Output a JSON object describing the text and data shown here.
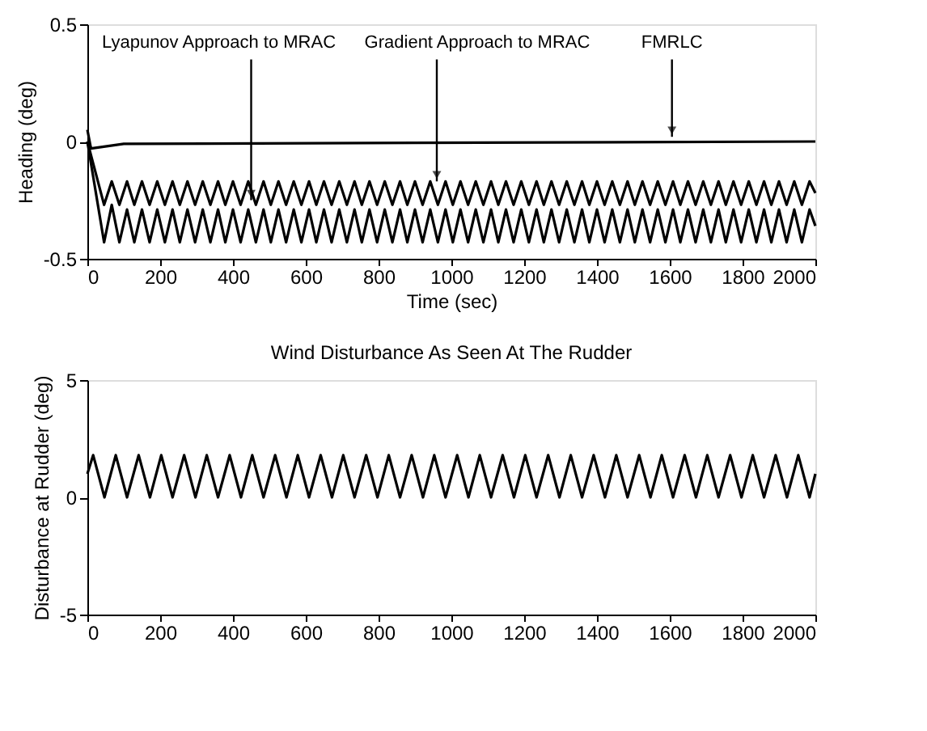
{
  "chart_data": [
    {
      "type": "line",
      "xlabel": "Time (sec)",
      "ylabel": "Heading (deg)",
      "xlim": [
        0,
        2000
      ],
      "xticks": [
        0,
        200,
        400,
        600,
        800,
        1000,
        1200,
        1400,
        1600,
        1800,
        2000
      ],
      "ylim": [
        -0.5,
        0.5
      ],
      "yticks": [
        -0.5,
        0,
        0.5
      ],
      "grid": false,
      "line_style": "solid",
      "marker": "none",
      "x": [
        0,
        46,
        67,
        88,
        109,
        129,
        150,
        171,
        192,
        213,
        234,
        254,
        275,
        296,
        317,
        338,
        359,
        379,
        400,
        421,
        442,
        463,
        484,
        504,
        525,
        546,
        567,
        588,
        609,
        629,
        650,
        671,
        692,
        713,
        734,
        754,
        775,
        796,
        817,
        838,
        859,
        879,
        900,
        921,
        942,
        963,
        984,
        1004,
        1025,
        1046,
        1067,
        1088,
        1109,
        1129,
        1150,
        1171,
        1192,
        1213,
        1234,
        1254,
        1275,
        1296,
        1317,
        1338,
        1359,
        1379,
        1400,
        1421,
        1442,
        1463,
        1484,
        1504,
        1525,
        1546,
        1567,
        1588,
        1609,
        1629,
        1650,
        1671,
        1692,
        1713,
        1734,
        1754,
        1775,
        1796,
        1817,
        1838,
        1859,
        1879,
        1900,
        1921,
        1942,
        1963,
        1984,
        2000
      ],
      "series": [
        {
          "color": "#000000",
          "x": [
            0,
            10,
            100,
            2000
          ],
          "values": [
            0.05,
            -0.03,
            -0.01,
            0.0
          ]
        },
        {
          "color": "#000000",
          "values": [
            0,
            -0.27,
            -0.17,
            -0.27,
            -0.17,
            -0.27,
            -0.17,
            -0.27,
            -0.17,
            -0.27,
            -0.17,
            -0.27,
            -0.17,
            -0.27,
            -0.17,
            -0.27,
            -0.17,
            -0.27,
            -0.17,
            -0.27,
            -0.17,
            -0.27,
            -0.17,
            -0.27,
            -0.17,
            -0.27,
            -0.17,
            -0.27,
            -0.17,
            -0.27,
            -0.17,
            -0.27,
            -0.17,
            -0.27,
            -0.17,
            -0.27,
            -0.17,
            -0.27,
            -0.17,
            -0.27,
            -0.17,
            -0.27,
            -0.17,
            -0.27,
            -0.17,
            -0.27,
            -0.17,
            -0.27,
            -0.17,
            -0.27,
            -0.17,
            -0.27,
            -0.17,
            -0.27,
            -0.17,
            -0.27,
            -0.17,
            -0.27,
            -0.17,
            -0.27,
            -0.17,
            -0.27,
            -0.17,
            -0.27,
            -0.17,
            -0.27,
            -0.17,
            -0.27,
            -0.17,
            -0.27,
            -0.17,
            -0.27,
            -0.17,
            -0.27,
            -0.17,
            -0.27,
            -0.17,
            -0.27,
            -0.17,
            -0.27,
            -0.17,
            -0.27,
            -0.17,
            -0.27,
            -0.17,
            -0.27,
            -0.17,
            -0.27,
            -0.17,
            -0.27,
            -0.17,
            -0.27,
            -0.17,
            -0.27,
            -0.17,
            -0.22
          ]
        },
        {
          "color": "#000000",
          "values": [
            0,
            -0.43,
            -0.27,
            -0.43,
            -0.29,
            -0.43,
            -0.29,
            -0.43,
            -0.29,
            -0.43,
            -0.29,
            -0.43,
            -0.29,
            -0.43,
            -0.29,
            -0.43,
            -0.29,
            -0.43,
            -0.29,
            -0.43,
            -0.29,
            -0.43,
            -0.29,
            -0.43,
            -0.29,
            -0.43,
            -0.29,
            -0.43,
            -0.29,
            -0.43,
            -0.29,
            -0.43,
            -0.29,
            -0.43,
            -0.29,
            -0.43,
            -0.29,
            -0.43,
            -0.29,
            -0.43,
            -0.29,
            -0.43,
            -0.29,
            -0.43,
            -0.29,
            -0.43,
            -0.29,
            -0.43,
            -0.29,
            -0.43,
            -0.29,
            -0.43,
            -0.29,
            -0.43,
            -0.29,
            -0.43,
            -0.29,
            -0.43,
            -0.29,
            -0.43,
            -0.29,
            -0.43,
            -0.29,
            -0.43,
            -0.29,
            -0.43,
            -0.29,
            -0.43,
            -0.29,
            -0.43,
            -0.29,
            -0.43,
            -0.29,
            -0.43,
            -0.29,
            -0.43,
            -0.29,
            -0.43,
            -0.29,
            -0.43,
            -0.29,
            -0.43,
            -0.29,
            -0.43,
            -0.29,
            -0.43,
            -0.29,
            -0.43,
            -0.29,
            -0.43,
            -0.29,
            -0.43,
            -0.29,
            -0.43,
            -0.29,
            -0.36
          ]
        }
      ],
      "annotations": [
        {
          "text": "Lyapunov Approach to MRAC",
          "x": 450,
          "y": -0.25
        },
        {
          "text": "Gradient Approach to MRAC",
          "x": 960,
          "y": -0.17
        },
        {
          "text": "FMRLC",
          "x": 1606,
          "y": 0.02
        }
      ]
    },
    {
      "type": "line",
      "title": "Wind Disturbance As Seen At The Rudder",
      "ylabel": "Disturbance at Rudder (deg)",
      "xlim": [
        0,
        2000
      ],
      "xticks": [
        0,
        200,
        400,
        600,
        800,
        1000,
        1200,
        1400,
        1600,
        1800,
        2000
      ],
      "ylim": [
        -5,
        5
      ],
      "yticks": [
        -5,
        0,
        5
      ],
      "grid": false,
      "line_style": "solid",
      "marker": "none",
      "x": [
        0,
        16,
        47,
        78,
        109,
        141,
        172,
        203,
        234,
        266,
        297,
        328,
        359,
        391,
        422,
        453,
        484,
        516,
        547,
        578,
        609,
        641,
        672,
        703,
        734,
        766,
        797,
        828,
        859,
        891,
        922,
        953,
        984,
        1016,
        1047,
        1078,
        1109,
        1141,
        1172,
        1203,
        1234,
        1266,
        1297,
        1328,
        1359,
        1391,
        1422,
        1453,
        1484,
        1516,
        1547,
        1578,
        1609,
        1641,
        1672,
        1703,
        1734,
        1766,
        1797,
        1828,
        1859,
        1891,
        1922,
        1953,
        1984,
        2000
      ],
      "series": [
        {
          "color": "#000000",
          "values": [
            1.0,
            1.8,
            0,
            1.8,
            0,
            1.8,
            0,
            1.8,
            0,
            1.8,
            0,
            1.8,
            0,
            1.8,
            0,
            1.8,
            0,
            1.8,
            0,
            1.8,
            0,
            1.8,
            0,
            1.8,
            0,
            1.8,
            0,
            1.8,
            0,
            1.8,
            0,
            1.8,
            0,
            1.8,
            0,
            1.8,
            0,
            1.8,
            0,
            1.8,
            0,
            1.8,
            0,
            1.8,
            0,
            1.8,
            0,
            1.8,
            0,
            1.8,
            0,
            1.8,
            0,
            1.8,
            0,
            1.8,
            0,
            1.8,
            0,
            1.8,
            0,
            1.8,
            0,
            1.8,
            0,
            1.0
          ]
        }
      ]
    }
  ]
}
